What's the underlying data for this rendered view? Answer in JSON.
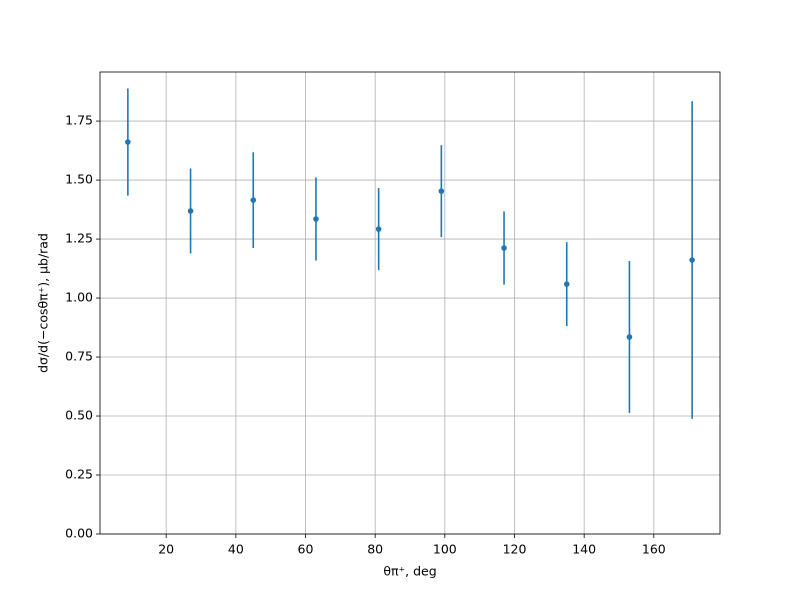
{
  "chart_data": {
    "type": "errorbar",
    "x_label": "θπ⁺, deg",
    "y_label": "dσ/d(−cosθπ⁺), μb/rad",
    "x": [
      9,
      27,
      45,
      63,
      81,
      99,
      117,
      135,
      153,
      171
    ],
    "series": [
      {
        "color": "#1f77b4",
        "values": [
          1.661,
          1.369,
          1.415,
          1.335,
          1.292,
          1.453,
          1.212,
          1.059,
          0.835,
          1.161
        ],
        "errors": [
          0.227,
          0.18,
          0.203,
          0.176,
          0.174,
          0.195,
          0.155,
          0.178,
          0.322,
          0.673
        ]
      }
    ],
    "xlim": [
      1,
      179
    ],
    "ylim": [
      0,
      1.958
    ],
    "xticks": [
      20,
      40,
      60,
      80,
      100,
      120,
      140,
      160
    ],
    "yticks": [
      {
        "value": 0,
        "label": "0.00"
      },
      0.25,
      {
        "value": 0.5,
        "label": "0.50"
      },
      0.75,
      {
        "value": 1,
        "label": "1.00"
      },
      1.25,
      {
        "value": 1.5,
        "label": "1.50"
      },
      1.75
    ],
    "grid": true
  }
}
